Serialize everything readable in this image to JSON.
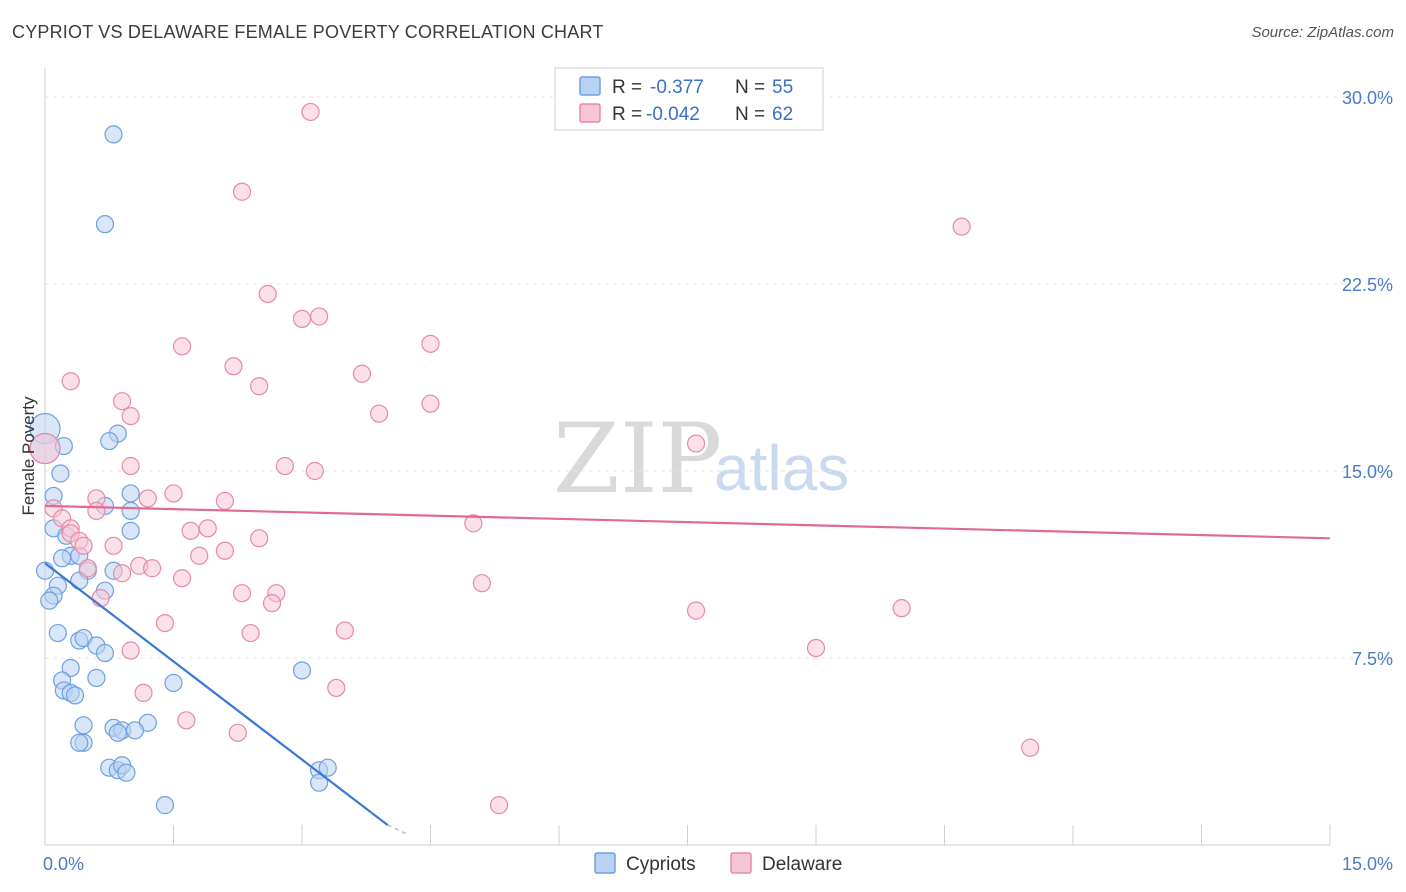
{
  "title": "CYPRIOT VS DELAWARE FEMALE POVERTY CORRELATION CHART",
  "source": "Source: ZipAtlas.com",
  "watermark": {
    "zip": "ZIP",
    "atlas": "atlas"
  },
  "chart_data": {
    "type": "scatter",
    "title": "CYPRIOT VS DELAWARE FEMALE POVERTY CORRELATION CHART",
    "xlabel": "",
    "ylabel": "Female Poverty",
    "xlim": [
      0,
      15
    ],
    "ylim": [
      0,
      31
    ],
    "x_tick_labels": [
      "0.0%",
      "15.0%"
    ],
    "y_ticks": [
      7.5,
      15.0,
      22.5,
      30.0
    ],
    "y_tick_labels": [
      "7.5%",
      "15.0%",
      "22.5%",
      "30.0%"
    ],
    "grid": true,
    "legend_position": "top-center",
    "legend": [
      {
        "name": "Cypriots",
        "r_label": "R = ",
        "r": "-0.377",
        "n_label": "N = ",
        "n": "55",
        "color": "#6fa0e0",
        "fill": "#b9d1f3"
      },
      {
        "name": "Delaware",
        "r_label": "R = ",
        "r": "-0.042",
        "n_label": "N = ",
        "n": "62",
        "color": "#e68aa8",
        "fill": "#f7c6d5"
      }
    ],
    "series": [
      {
        "name": "Cypriots",
        "color": "#6fa0e0",
        "trend": {
          "x": [
            0.0,
            4.0
          ],
          "y": [
            11.3,
            0.8
          ],
          "color": "#3a78d4",
          "dash_to": [
            4.25,
            0.4
          ]
        },
        "points": [
          [
            0.0,
            16.7
          ],
          [
            0.0,
            15.9
          ],
          [
            0.8,
            28.5
          ],
          [
            0.7,
            24.9
          ],
          [
            0.85,
            16.5
          ],
          [
            0.75,
            16.2
          ],
          [
            0.22,
            16.0
          ],
          [
            0.18,
            14.9
          ],
          [
            0.1,
            14.0
          ],
          [
            1.0,
            14.1
          ],
          [
            0.7,
            13.6
          ],
          [
            1.0,
            13.4
          ],
          [
            0.1,
            12.7
          ],
          [
            1.0,
            12.6
          ],
          [
            0.25,
            12.4
          ],
          [
            0.3,
            11.6
          ],
          [
            0.4,
            11.6
          ],
          [
            0.2,
            11.5
          ],
          [
            0.0,
            11.0
          ],
          [
            0.5,
            11.0
          ],
          [
            0.8,
            11.0
          ],
          [
            0.4,
            10.6
          ],
          [
            0.15,
            10.4
          ],
          [
            0.7,
            10.2
          ],
          [
            0.1,
            10.0
          ],
          [
            0.05,
            9.8
          ],
          [
            0.15,
            8.5
          ],
          [
            0.4,
            8.2
          ],
          [
            0.45,
            8.3
          ],
          [
            0.6,
            8.0
          ],
          [
            0.7,
            7.7
          ],
          [
            0.3,
            7.1
          ],
          [
            3.0,
            7.0
          ],
          [
            0.2,
            6.6
          ],
          [
            1.5,
            6.5
          ],
          [
            0.6,
            6.7
          ],
          [
            0.22,
            6.2
          ],
          [
            0.3,
            6.1
          ],
          [
            0.35,
            6.0
          ],
          [
            1.2,
            4.9
          ],
          [
            0.45,
            4.8
          ],
          [
            0.8,
            4.7
          ],
          [
            0.9,
            4.6
          ],
          [
            0.85,
            4.5
          ],
          [
            1.05,
            4.6
          ],
          [
            0.45,
            4.1
          ],
          [
            0.75,
            3.1
          ],
          [
            0.85,
            3.0
          ],
          [
            0.9,
            3.2
          ],
          [
            0.95,
            2.9
          ],
          [
            3.2,
            3.0
          ],
          [
            3.3,
            3.1
          ],
          [
            3.2,
            2.5
          ],
          [
            1.4,
            1.6
          ],
          [
            0.4,
            4.1
          ]
        ]
      },
      {
        "name": "Delaware",
        "color": "#e68aa8",
        "trend": {
          "x": [
            0.0,
            15.0
          ],
          "y": [
            13.6,
            12.3
          ],
          "color": "#e06b92"
        },
        "points": [
          [
            3.1,
            29.4
          ],
          [
            2.3,
            26.2
          ],
          [
            10.7,
            24.8
          ],
          [
            2.6,
            22.1
          ],
          [
            3.0,
            21.1
          ],
          [
            3.2,
            21.2
          ],
          [
            1.6,
            20.0
          ],
          [
            4.5,
            20.1
          ],
          [
            2.2,
            19.2
          ],
          [
            3.7,
            18.9
          ],
          [
            0.3,
            18.6
          ],
          [
            2.5,
            18.4
          ],
          [
            0.9,
            17.8
          ],
          [
            4.5,
            17.7
          ],
          [
            1.0,
            17.2
          ],
          [
            3.9,
            17.3
          ],
          [
            7.6,
            16.1
          ],
          [
            0.0,
            15.9
          ],
          [
            1.0,
            15.2
          ],
          [
            2.8,
            15.2
          ],
          [
            3.15,
            15.0
          ],
          [
            1.5,
            14.1
          ],
          [
            0.6,
            13.9
          ],
          [
            1.2,
            13.9
          ],
          [
            2.1,
            13.8
          ],
          [
            0.1,
            13.5
          ],
          [
            0.2,
            13.1
          ],
          [
            0.6,
            13.4
          ],
          [
            5.0,
            12.9
          ],
          [
            0.3,
            12.7
          ],
          [
            1.9,
            12.7
          ],
          [
            1.7,
            12.6
          ],
          [
            0.3,
            12.5
          ],
          [
            2.5,
            12.3
          ],
          [
            0.4,
            12.2
          ],
          [
            0.8,
            12.0
          ],
          [
            0.45,
            12.0
          ],
          [
            2.1,
            11.8
          ],
          [
            1.8,
            11.6
          ],
          [
            0.5,
            11.1
          ],
          [
            1.1,
            11.2
          ],
          [
            1.25,
            11.1
          ],
          [
            0.9,
            10.9
          ],
          [
            1.6,
            10.7
          ],
          [
            5.1,
            10.5
          ],
          [
            2.3,
            10.1
          ],
          [
            2.7,
            10.1
          ],
          [
            0.65,
            9.9
          ],
          [
            2.65,
            9.7
          ],
          [
            7.6,
            9.4
          ],
          [
            10.0,
            9.5
          ],
          [
            1.4,
            8.9
          ],
          [
            3.5,
            8.6
          ],
          [
            2.4,
            8.5
          ],
          [
            1.0,
            7.8
          ],
          [
            9.0,
            7.9
          ],
          [
            3.4,
            6.3
          ],
          [
            1.15,
            6.1
          ],
          [
            1.65,
            5.0
          ],
          [
            2.25,
            4.5
          ],
          [
            11.5,
            3.9
          ],
          [
            5.3,
            1.6
          ]
        ]
      }
    ]
  }
}
